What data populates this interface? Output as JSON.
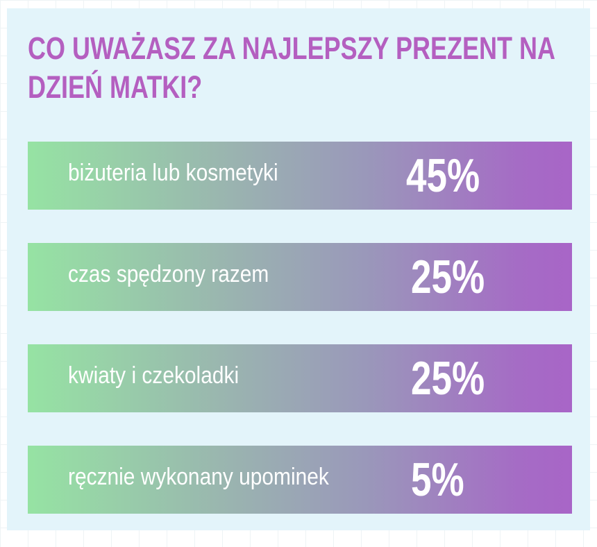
{
  "chart_data": {
    "type": "bar",
    "title": "CO UWAŻASZ ZA NAJLEPSZY PREZENT NA DZIEŃ MATKI?",
    "categories": [
      "biżuteria lub kosmetyki",
      "czas spędzony razem",
      "kwiaty i czekoladki",
      "ręcznie wykonany upominek"
    ],
    "values": [
      45,
      25,
      25,
      5
    ],
    "value_labels": [
      "45%",
      "25%",
      "25%",
      "5%"
    ],
    "xlabel": "",
    "ylabel": "",
    "grid": false,
    "legend": "none"
  },
  "colors": {
    "title": "#b45fc0",
    "panel_background": "#e3f4fa",
    "bar_gradient_start": "#96e3a3",
    "bar_gradient_end": "#a865c7",
    "bar_text": "#ffffff"
  }
}
